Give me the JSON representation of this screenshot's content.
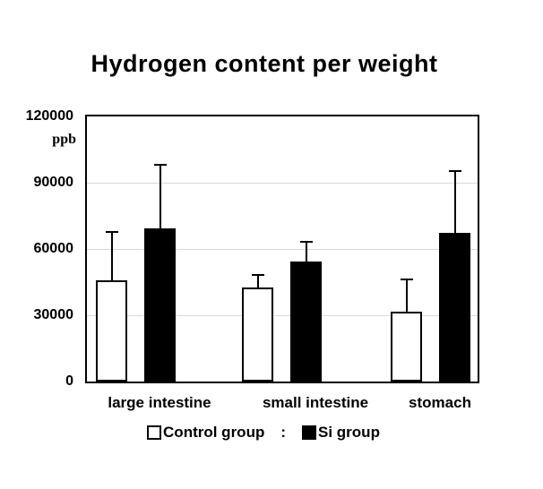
{
  "title": "Hydrogen content per weight",
  "y_axis": {
    "unit": "ppb",
    "tick_labels": [
      "120000",
      "90000",
      "60000",
      "30000",
      "0"
    ]
  },
  "legend": {
    "items": [
      {
        "label": "Control group",
        "swatch": "outline-square"
      },
      {
        "label": "Si group",
        "swatch": "filled-square"
      }
    ],
    "separator": ":"
  },
  "colors": {
    "control_fill": "#ffffff",
    "si_fill": "#000000",
    "bar_border": "#000000",
    "gridline": "#d9d9d9",
    "axis": "#000000",
    "text": "#000000"
  },
  "chart_data": {
    "type": "bar",
    "title": "Hydrogen content per weight",
    "ylabel": "ppb",
    "ylim": [
      0,
      120000
    ],
    "yticks": [
      0,
      30000,
      60000,
      90000,
      120000
    ],
    "grid": "horizontal-light-gray",
    "legend_position": "bottom",
    "error_bars": "upper-only",
    "categories": [
      "large intestine",
      "small intestine",
      "stomach"
    ],
    "series": [
      {
        "name": "Control group",
        "values": [
          46000,
          42500,
          31500
        ],
        "error_plus": [
          22000,
          6000,
          15000
        ]
      },
      {
        "name": "Si group",
        "values": [
          69500,
          54500,
          67500
        ],
        "error_plus": [
          29000,
          9000,
          28000
        ]
      }
    ]
  }
}
